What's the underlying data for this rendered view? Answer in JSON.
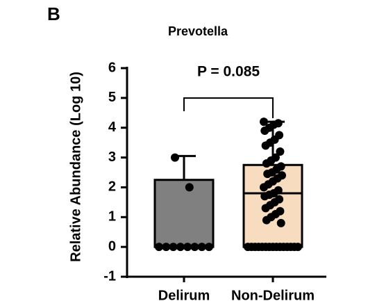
{
  "panel_label": "B",
  "chart_data": {
    "type": "box",
    "title": "Prevotella",
    "ylabel": "Relative Abundance (Log 10)",
    "annotation": "P = 0.085",
    "categories": [
      "Delirum",
      "Non-Delirum"
    ],
    "ylim": [
      -1,
      6
    ],
    "yticks": [
      -1,
      0,
      1,
      2,
      3,
      4,
      5,
      6
    ],
    "series": [
      {
        "color": "#808080",
        "min": 0,
        "q1": 0,
        "median": 0,
        "q3": 2.25,
        "max": 3.05,
        "points": [
          3.0,
          2.0,
          0,
          0,
          0,
          0,
          0,
          0,
          0,
          0
        ]
      },
      {
        "color": "#f8dcc0",
        "min": 0,
        "q1": 0,
        "median": 1.8,
        "q3": 2.75,
        "max": 4.2,
        "points": [
          4.2,
          4.15,
          4.1,
          4.0,
          3.9,
          3.75,
          3.6,
          3.5,
          3.4,
          3.2,
          3.0,
          2.9,
          2.8,
          2.7,
          2.6,
          2.5,
          2.45,
          2.4,
          2.3,
          2.2,
          2.1,
          2.0,
          1.9,
          1.8,
          1.75,
          1.7,
          1.6,
          1.5,
          1.4,
          1.3,
          1.2,
          1.1,
          1.0,
          0.9,
          0.8,
          0,
          0,
          0,
          0,
          0,
          0,
          0,
          0,
          0,
          0,
          0,
          0,
          0,
          0,
          0
        ]
      }
    ]
  }
}
